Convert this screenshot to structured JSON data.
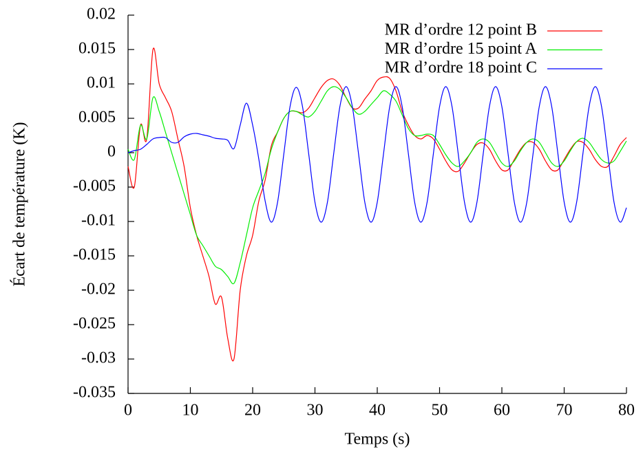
{
  "chart_data": {
    "type": "line",
    "xlabel": "Temps (s)",
    "ylabel": "Écart de température (K)",
    "xlim": [
      0,
      80
    ],
    "ylim": [
      -0.035,
      0.02
    ],
    "xticks": [
      0,
      10,
      20,
      30,
      40,
      50,
      60,
      70,
      80
    ],
    "yticks": [
      0.02,
      0.015,
      0.01,
      0.005,
      0,
      -0.005,
      -0.01,
      -0.015,
      -0.02,
      -0.025,
      -0.03,
      -0.035
    ],
    "legend": "top right",
    "x": [
      0,
      1,
      2,
      3,
      4,
      5,
      6,
      7,
      8,
      9,
      10,
      11,
      12,
      13,
      14,
      15,
      16,
      17,
      18,
      19,
      20,
      21,
      22,
      23,
      24,
      25,
      26,
      27,
      28,
      29,
      30,
      31,
      32,
      33,
      34,
      35,
      36,
      37,
      38,
      39,
      40,
      41,
      42,
      43,
      44,
      45,
      46,
      47,
      48,
      49,
      50,
      51,
      52,
      53,
      54,
      55,
      56,
      57,
      58,
      59,
      60,
      61,
      62,
      63,
      64,
      65,
      66,
      67,
      68,
      69,
      70,
      71,
      72,
      73,
      74,
      75,
      76,
      77,
      78,
      79,
      80
    ],
    "series": [
      {
        "name": "MR d’ordre 12 point B",
        "color": "#ff0000",
        "values": [
          -0.002,
          -0.005,
          0.004,
          0.002,
          0.015,
          0.01,
          0.008,
          0.006,
          0.002,
          -0.002,
          -0.008,
          -0.012,
          -0.015,
          -0.018,
          -0.022,
          -0.021,
          -0.027,
          -0.03,
          -0.02,
          -0.015,
          -0.012,
          -0.007,
          -0.004,
          0.001,
          0.003,
          0.005,
          0.006,
          0.006,
          0.0058,
          0.0065,
          0.008,
          0.0095,
          0.0105,
          0.0107,
          0.0098,
          0.008,
          0.0065,
          0.0065,
          0.0078,
          0.009,
          0.0105,
          0.011,
          0.0108,
          0.009,
          0.006,
          0.004,
          0.0025,
          0.002,
          0.0025,
          0.002,
          0.0005,
          -0.0012,
          -0.0025,
          -0.0027,
          -0.0015,
          0,
          0.0012,
          0.0014,
          0.0005,
          -0.0012,
          -0.0025,
          -0.0025,
          -0.001,
          0.0005,
          0.0015,
          0.0015,
          0.0005,
          -0.0012,
          -0.0025,
          -0.0025,
          -0.001,
          0.0005,
          0.0016,
          0.0015,
          0.0005,
          -0.001,
          -0.002,
          -0.002,
          -0.0005,
          0.0012,
          0.0022
        ]
      },
      {
        "name": "MR d’ordre 15 point A",
        "color": "#00ee00",
        "values": [
          0.0005,
          -0.001,
          0.004,
          0.002,
          0.008,
          0.006,
          0.003,
          0,
          -0.003,
          -0.006,
          -0.009,
          -0.012,
          -0.0135,
          -0.015,
          -0.0165,
          -0.017,
          -0.018,
          -0.019,
          -0.016,
          -0.012,
          -0.008,
          -0.0055,
          -0.003,
          0.0005,
          0.003,
          0.005,
          0.006,
          0.006,
          0.0055,
          0.0052,
          0.006,
          0.0075,
          0.009,
          0.0096,
          0.0092,
          0.008,
          0.0065,
          0.0056,
          0.006,
          0.007,
          0.008,
          0.009,
          0.0085,
          0.0075,
          0.0055,
          0.0035,
          0.0025,
          0.0025,
          0.0027,
          0.0025,
          0.0012,
          -0.0003,
          -0.0015,
          -0.002,
          -0.0012,
          0,
          0.0015,
          0.002,
          0.0015,
          0,
          -0.0015,
          -0.002,
          -0.0012,
          0.0003,
          0.0015,
          0.002,
          0.0015,
          0,
          -0.0015,
          -0.002,
          -0.0012,
          0.0003,
          0.0016,
          0.0021,
          0.0015,
          0.0002,
          -0.001,
          -0.0015,
          -0.0012,
          0.0002,
          0.0017
        ]
      },
      {
        "name": "MR d’ordre 18 point C",
        "color": "#0000ff",
        "values": [
          0,
          0.0003,
          0.0005,
          0.0012,
          0.002,
          0.0022,
          0.0022,
          0.0015,
          0.0015,
          0.0023,
          0.0027,
          0.0028,
          0.0026,
          0.0024,
          0.0021,
          0.002,
          0.0018,
          0.0006,
          0.004,
          0.0072,
          0.004,
          -0.001,
          -0.007,
          -0.0101,
          -0.0072,
          -0.0002,
          0.0067,
          0.0095,
          0.0067,
          -0.0002,
          -0.0072,
          -0.0101,
          -0.0072,
          -0.0002,
          0.0067,
          0.0096,
          0.0067,
          -0.0002,
          -0.0072,
          -0.0101,
          -0.0072,
          -0.0002,
          0.0067,
          0.0096,
          0.0067,
          -0.0002,
          -0.0072,
          -0.0101,
          -0.0072,
          -0.0002,
          0.0067,
          0.0096,
          0.0067,
          -0.0002,
          -0.0072,
          -0.0101,
          -0.0072,
          -0.0002,
          0.0067,
          0.0096,
          0.0067,
          -0.0002,
          -0.0072,
          -0.0101,
          -0.0072,
          -0.0002,
          0.0067,
          0.0096,
          0.0067,
          -0.0002,
          -0.0072,
          -0.0101,
          -0.0072,
          -0.0002,
          0.0067,
          0.0096,
          0.0067,
          -0.0002,
          -0.0072,
          -0.0101,
          -0.008
        ]
      }
    ]
  }
}
